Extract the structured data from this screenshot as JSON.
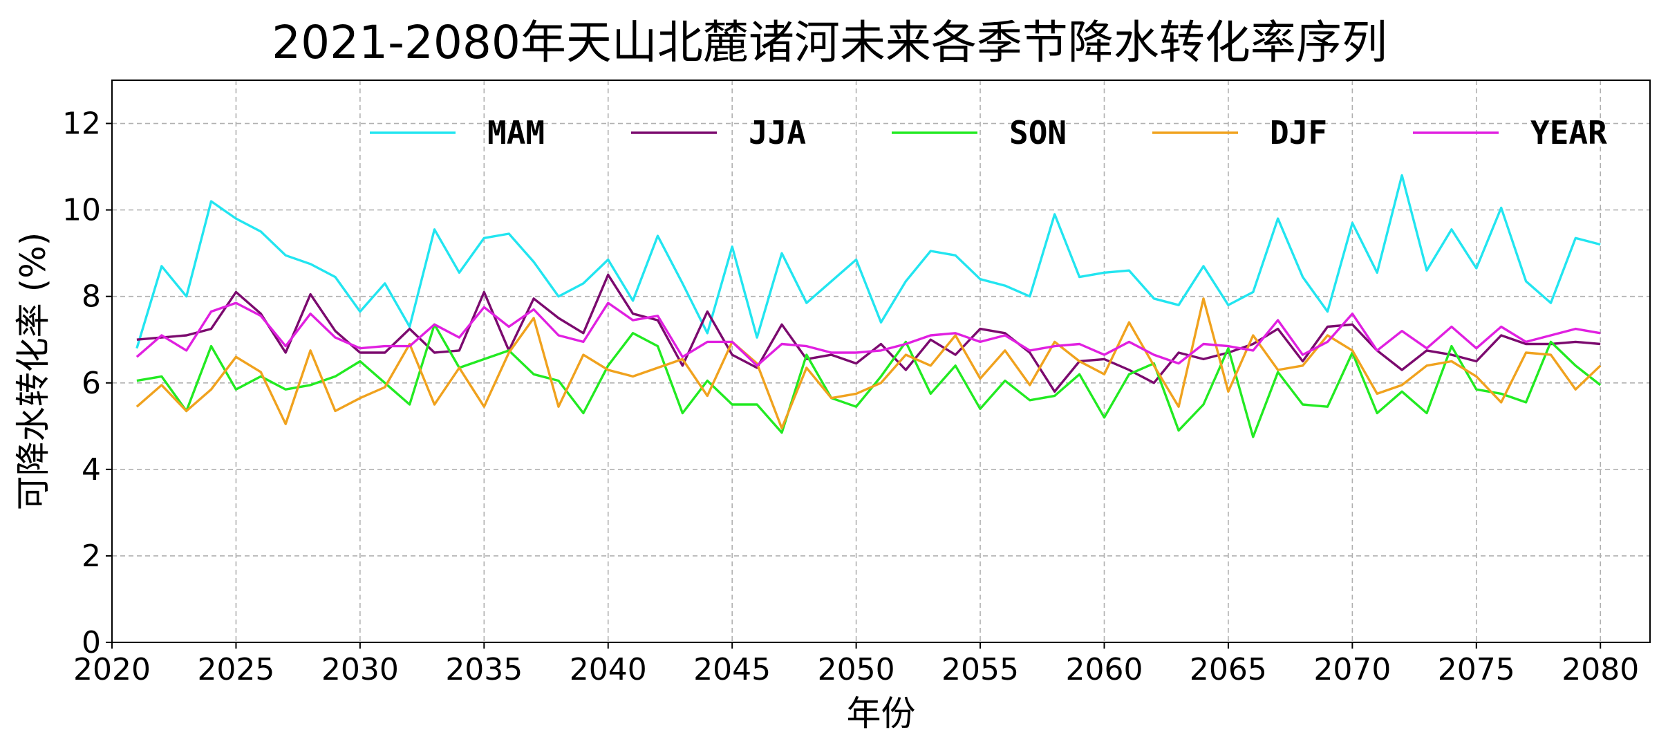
{
  "chart_data": {
    "type": "line",
    "title": "2021-2080年天山北麓诸河未来各季节降水转化率序列",
    "xlabel": "年份",
    "ylabel": "可降水转化率 (%)",
    "xlim": [
      2020,
      2082
    ],
    "ylim": [
      0,
      13
    ],
    "xticks": [
      2020,
      2025,
      2030,
      2035,
      2040,
      2045,
      2050,
      2055,
      2060,
      2065,
      2070,
      2075,
      2080
    ],
    "yticks": [
      0,
      2,
      4,
      6,
      8,
      10,
      12
    ],
    "grid": true,
    "legend_position": "top, horizontal",
    "x": [
      2021,
      2022,
      2023,
      2024,
      2025,
      2026,
      2027,
      2028,
      2029,
      2030,
      2031,
      2032,
      2033,
      2034,
      2035,
      2036,
      2037,
      2038,
      2039,
      2040,
      2041,
      2042,
      2043,
      2044,
      2045,
      2046,
      2047,
      2048,
      2049,
      2050,
      2051,
      2052,
      2053,
      2054,
      2055,
      2056,
      2057,
      2058,
      2059,
      2060,
      2061,
      2062,
      2063,
      2064,
      2065,
      2066,
      2067,
      2068,
      2069,
      2070,
      2071,
      2072,
      2073,
      2074,
      2075,
      2076,
      2077,
      2078,
      2079,
      2080
    ],
    "series": [
      {
        "name": "MAM",
        "color": "#22e5f0",
        "values": [
          6.8,
          8.7,
          8.0,
          10.2,
          9.8,
          9.5,
          8.95,
          8.75,
          8.45,
          7.65,
          8.3,
          7.3,
          9.55,
          8.55,
          9.35,
          9.45,
          8.8,
          8.0,
          8.3,
          8.85,
          7.9,
          9.4,
          8.3,
          7.15,
          9.15,
          7.05,
          9.0,
          7.85,
          8.35,
          8.85,
          7.4,
          8.35,
          9.05,
          8.95,
          8.4,
          8.25,
          8.0,
          9.9,
          8.45,
          8.55,
          8.6,
          7.95,
          7.8,
          8.7,
          7.8,
          8.1,
          9.8,
          8.45,
          7.65,
          9.7,
          8.55,
          10.8,
          8.6,
          9.55,
          8.65,
          10.05,
          8.35,
          7.85,
          9.35,
          9.2
        ]
      },
      {
        "name": "JJA",
        "color": "#7b0a6e",
        "values": [
          7.0,
          7.05,
          7.1,
          7.25,
          8.1,
          7.6,
          6.7,
          8.05,
          7.2,
          6.7,
          6.7,
          7.25,
          6.7,
          6.75,
          8.1,
          6.75,
          7.95,
          7.5,
          7.15,
          8.5,
          7.6,
          7.45,
          6.4,
          7.65,
          6.65,
          6.35,
          7.35,
          6.55,
          6.65,
          6.45,
          6.9,
          6.3,
          7.0,
          6.65,
          7.25,
          7.15,
          6.7,
          5.8,
          6.5,
          6.55,
          6.3,
          6.0,
          6.7,
          6.55,
          6.7,
          6.9,
          7.25,
          6.5,
          7.3,
          7.35,
          6.75,
          6.3,
          6.75,
          6.65,
          6.5,
          7.1,
          6.9,
          6.9,
          6.95,
          6.9
        ]
      },
      {
        "name": "SON",
        "color": "#22ea22",
        "values": [
          6.05,
          6.15,
          5.35,
          6.85,
          5.85,
          6.15,
          5.85,
          5.95,
          6.15,
          6.5,
          6.0,
          5.5,
          7.35,
          6.35,
          6.55,
          6.75,
          6.2,
          6.05,
          5.3,
          6.4,
          7.15,
          6.85,
          5.3,
          6.05,
          5.5,
          5.5,
          4.85,
          6.65,
          5.65,
          5.45,
          6.15,
          6.95,
          5.75,
          6.4,
          5.4,
          6.05,
          5.6,
          5.7,
          6.2,
          5.2,
          6.2,
          6.45,
          4.9,
          5.5,
          6.8,
          4.75,
          6.25,
          5.5,
          5.45,
          6.7,
          5.3,
          5.8,
          5.3,
          6.85,
          5.85,
          5.75,
          5.55,
          6.95,
          6.4,
          5.95
        ]
      },
      {
        "name": "DJF",
        "color": "#f0a21e",
        "values": [
          5.45,
          5.95,
          5.35,
          5.85,
          6.6,
          6.25,
          5.05,
          6.75,
          5.35,
          5.65,
          5.9,
          6.9,
          5.5,
          6.35,
          5.45,
          6.7,
          7.5,
          5.45,
          6.65,
          6.3,
          6.15,
          6.35,
          6.55,
          5.7,
          6.95,
          6.45,
          4.95,
          6.35,
          5.65,
          5.75,
          6.0,
          6.65,
          6.4,
          7.1,
          6.1,
          6.75,
          5.95,
          6.95,
          6.5,
          6.2,
          7.4,
          6.4,
          5.45,
          7.95,
          5.8,
          7.1,
          6.3,
          6.4,
          7.1,
          6.75,
          5.75,
          5.95,
          6.4,
          6.5,
          6.15,
          5.55,
          6.7,
          6.65,
          5.85,
          6.4
        ]
      },
      {
        "name": "YEAR",
        "color": "#e020e0",
        "values": [
          6.6,
          7.1,
          6.75,
          7.65,
          7.85,
          7.55,
          6.85,
          7.6,
          7.05,
          6.8,
          6.85,
          6.85,
          7.35,
          7.05,
          7.75,
          7.3,
          7.7,
          7.1,
          6.95,
          7.85,
          7.45,
          7.55,
          6.6,
          6.95,
          6.95,
          6.4,
          6.9,
          6.85,
          6.7,
          6.7,
          6.75,
          6.9,
          7.1,
          7.15,
          6.95,
          7.1,
          6.75,
          6.85,
          6.9,
          6.65,
          6.95,
          6.65,
          6.45,
          6.9,
          6.85,
          6.75,
          7.45,
          6.65,
          6.95,
          7.6,
          6.75,
          7.2,
          6.8,
          7.3,
          6.8,
          7.3,
          6.95,
          7.1,
          7.25,
          7.15
        ]
      }
    ]
  }
}
